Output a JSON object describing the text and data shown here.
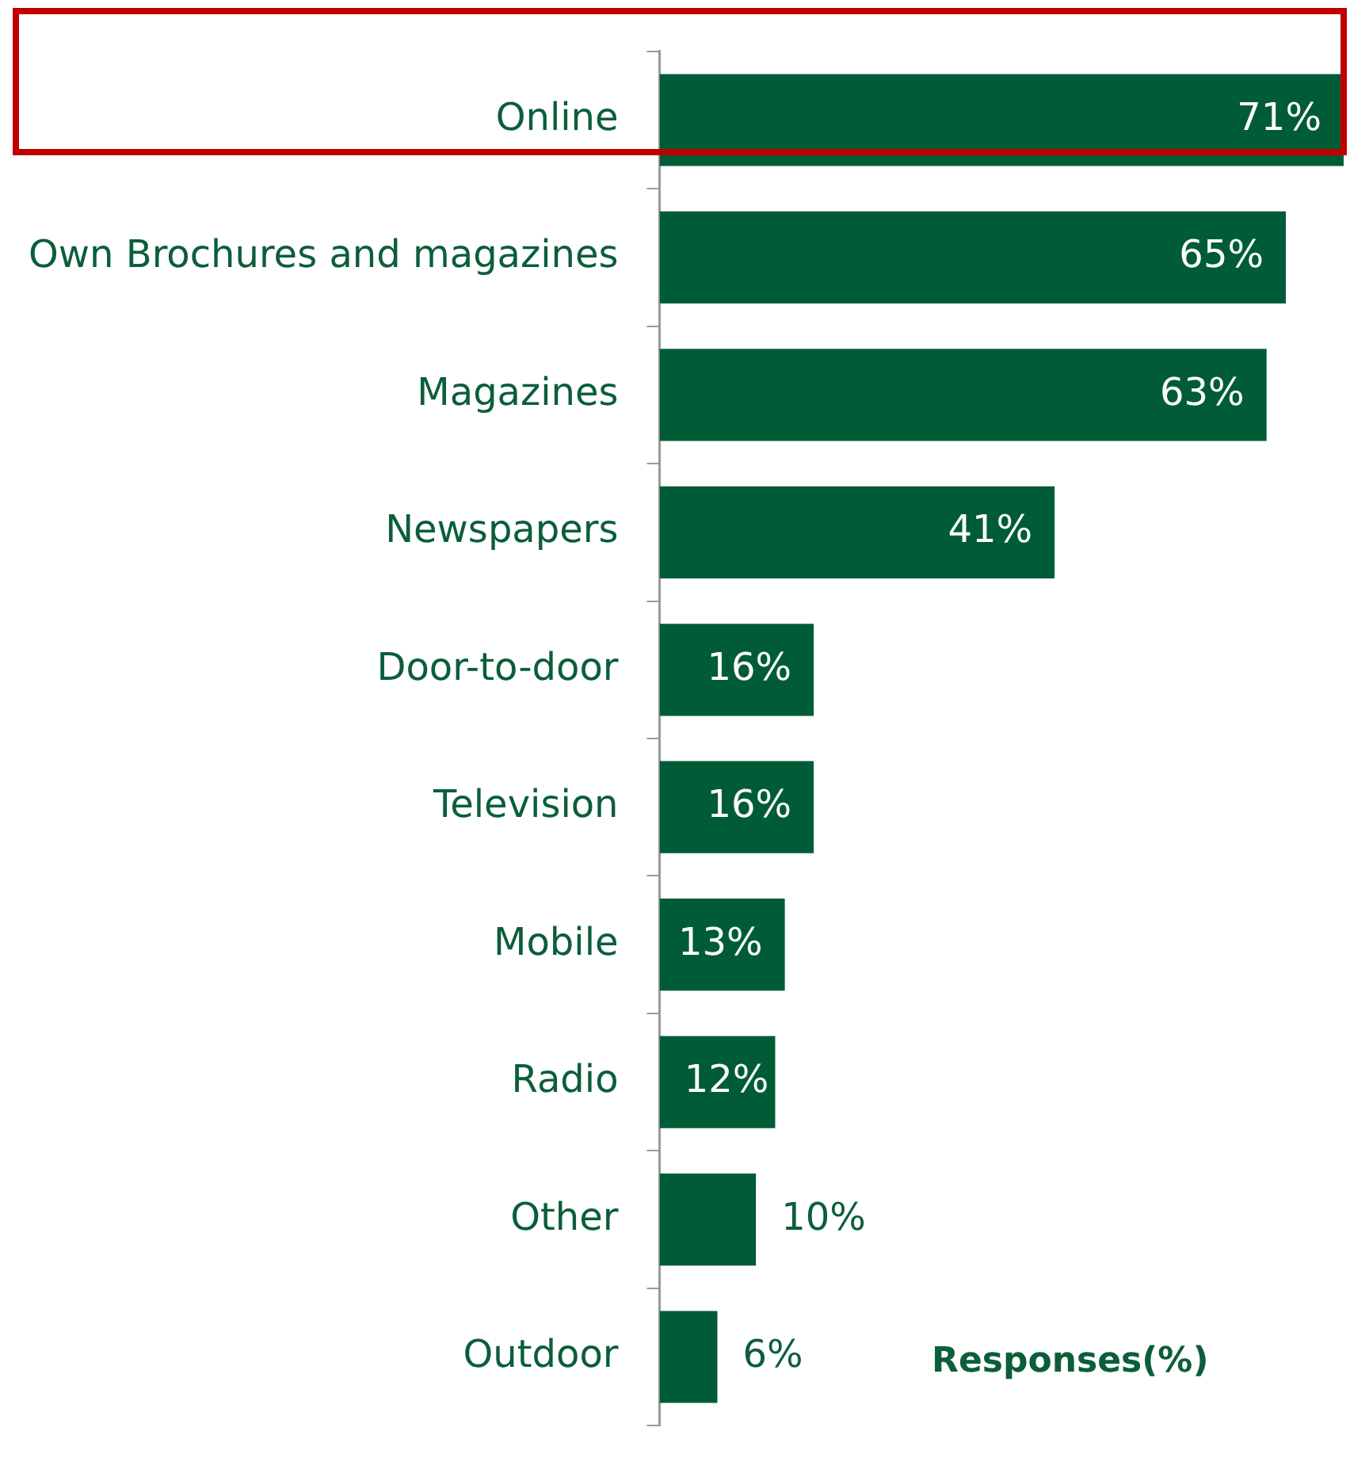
{
  "chart_data": {
    "type": "bar",
    "orientation": "horizontal",
    "xlabel": "Responses(%)",
    "categories": [
      "Online",
      "Own Brochures and magazines",
      "Magazines",
      "Newspapers",
      "Door-to-door",
      "Television",
      "Mobile",
      "Radio",
      "Other",
      "Outdoor"
    ],
    "values": [
      71,
      65,
      63,
      41,
      16,
      16,
      13,
      12,
      10,
      6
    ],
    "value_labels": [
      "71%",
      "65%",
      "63%",
      "41%",
      "16%",
      "16%",
      "13%",
      "12%",
      "10%",
      "6%"
    ],
    "color": "#005c37",
    "grid": false,
    "legend": false,
    "tick_labels": "y"
  }
}
